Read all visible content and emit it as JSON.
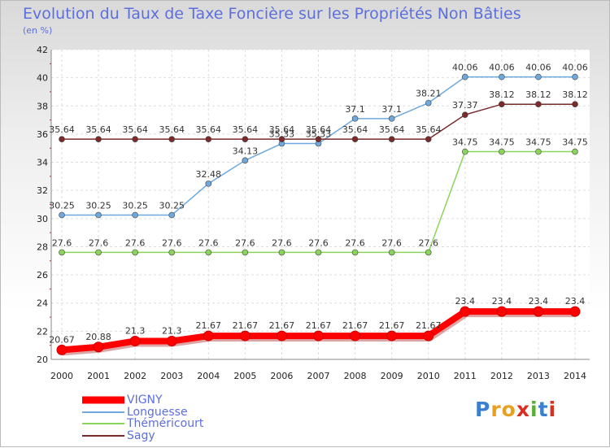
{
  "page": {
    "title": "Evolution du Taux de Taxe Foncière sur les Propriétés Non Bâties",
    "unit": "(en %)"
  },
  "logo": {
    "text": "Proxiti",
    "letter_colors": [
      "#3a7fd0",
      "#e8a020",
      "#e8a020",
      "#d83020",
      "#58b030",
      "#3a7fd0",
      "#d83020"
    ]
  },
  "chart_data": {
    "type": "line",
    "title": "Evolution du Taux de Taxe Foncière sur les Propriétés Non Bâties",
    "ylabel": "(en %)",
    "xlabel": "",
    "x": [
      "2000",
      "2001",
      "2002",
      "2003",
      "2004",
      "2005",
      "2006",
      "2007",
      "2008",
      "2009",
      "2010",
      "2011",
      "2012",
      "2013",
      "2014"
    ],
    "ylim": [
      20,
      42
    ],
    "yticks": [
      20,
      22,
      24,
      26,
      28,
      30,
      32,
      34,
      36,
      38,
      40,
      42
    ],
    "grid": true,
    "legend_position": "bottom-left",
    "series": [
      {
        "name": "VIGNY",
        "color": "#ff0000",
        "emphasis": true,
        "values": [
          20.67,
          20.88,
          21.3,
          21.3,
          21.67,
          21.67,
          21.67,
          21.67,
          21.67,
          21.67,
          21.67,
          23.4,
          23.4,
          23.4,
          23.4
        ],
        "labels": [
          "20.67",
          "20.88",
          "21.3",
          "21.3",
          "21.67",
          "21.67",
          "21.67",
          "21.67",
          "21.67",
          "21.67",
          "21.67",
          "23.4",
          "23.4",
          "23.4",
          "23.4"
        ]
      },
      {
        "name": "Longuesse",
        "color": "#6fa8dc",
        "values": [
          30.25,
          30.25,
          30.25,
          30.25,
          32.48,
          34.13,
          35.33,
          35.33,
          37.1,
          37.1,
          38.21,
          40.06,
          40.06,
          40.06,
          40.06
        ],
        "labels": [
          "30.25",
          "30.25",
          "30.25",
          "30.25",
          "32.48",
          "34.13",
          "35.33",
          "35.33",
          "37.1",
          "37.1",
          "38.21",
          "40.06",
          "40.06",
          "40.06",
          "40.06"
        ]
      },
      {
        "name": "Théméricourt",
        "color": "#8bd45c",
        "values": [
          27.6,
          27.6,
          27.6,
          27.6,
          27.6,
          27.6,
          27.6,
          27.6,
          27.6,
          27.6,
          27.6,
          34.75,
          34.75,
          34.75,
          34.75
        ],
        "labels": [
          "27.6",
          "27.6",
          "27.6",
          "27.6",
          "27.6",
          "27.6",
          "27.6",
          "27.6",
          "27.6",
          "27.6",
          "27.6",
          "34.75",
          "34.75",
          "34.75",
          "34.75"
        ]
      },
      {
        "name": "Sagy",
        "color": "#7a2a2a",
        "values": [
          35.64,
          35.64,
          35.64,
          35.64,
          35.64,
          35.64,
          35.64,
          35.64,
          35.64,
          35.64,
          35.64,
          37.37,
          38.12,
          38.12,
          38.12
        ],
        "labels": [
          "35.64",
          "35.64",
          "35.64",
          "35.64",
          "35.64",
          "35.64",
          "35.64",
          "35.64",
          "35.64",
          "35.64",
          "35.64",
          "37.37",
          "38.12",
          "38.12",
          "38.12"
        ]
      }
    ]
  }
}
